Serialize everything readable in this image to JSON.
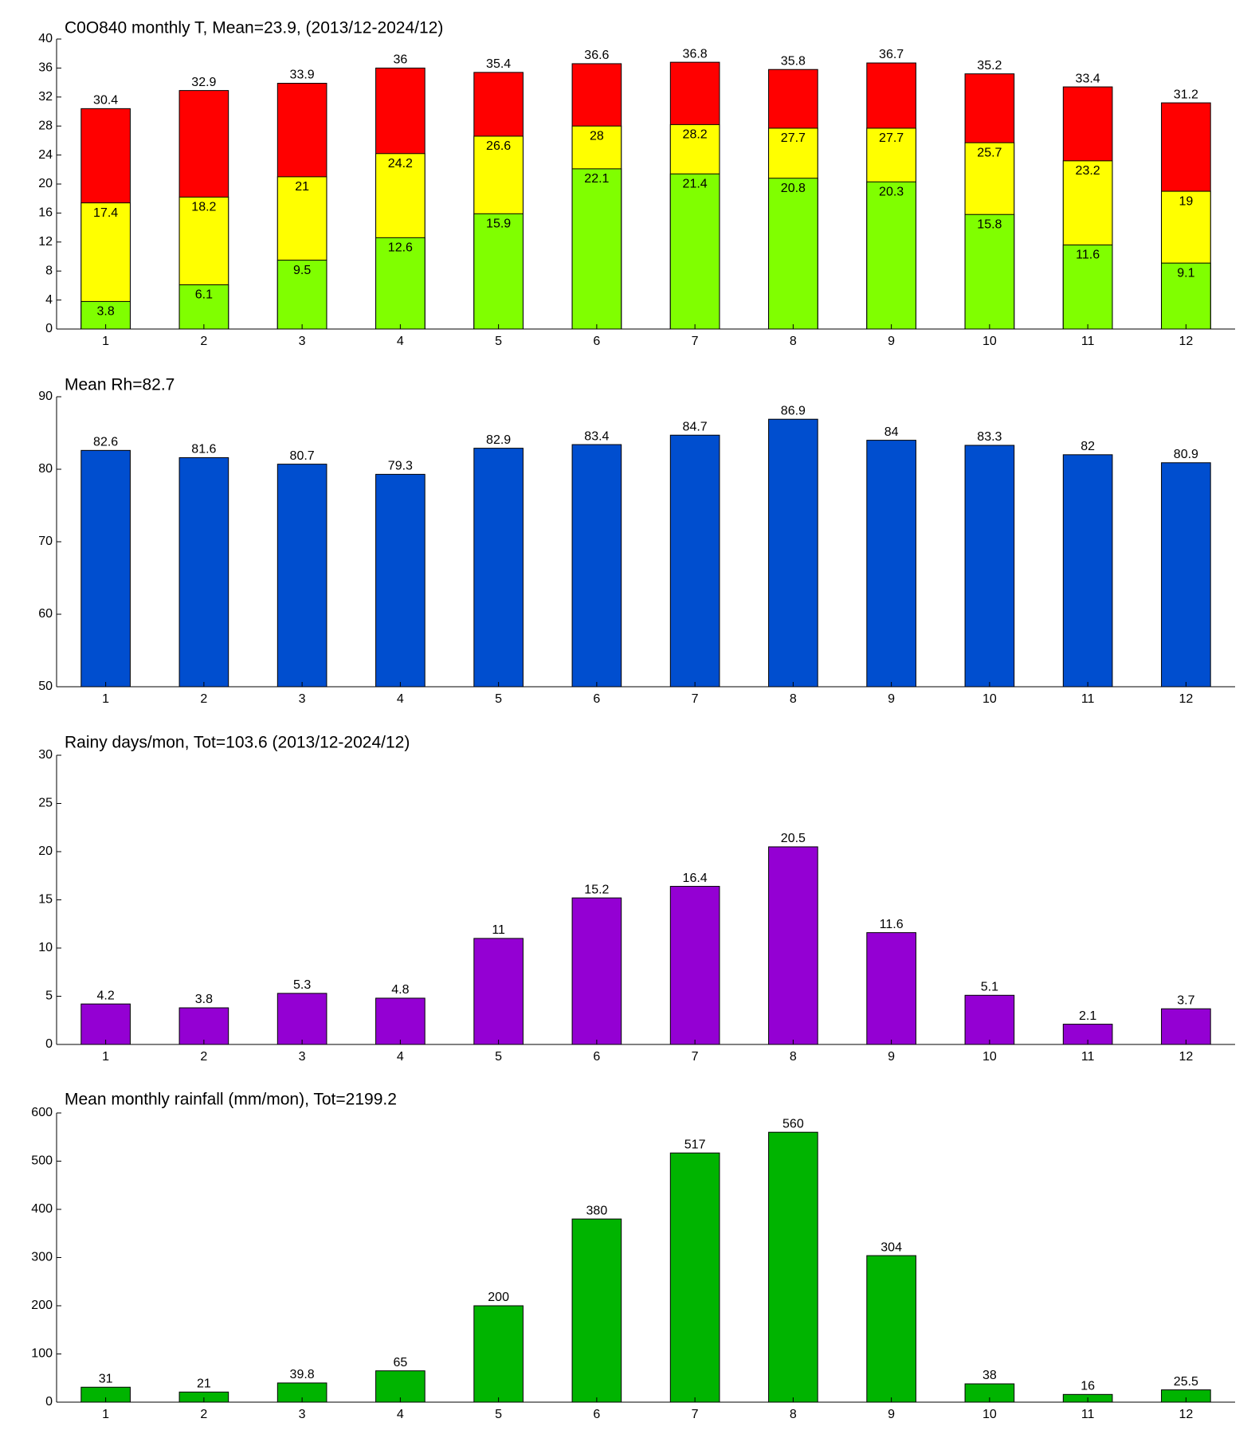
{
  "chart_data": [
    {
      "type": "bar",
      "title": "C0O840 monthly T, Mean=23.9, (2013/12-2024/12)",
      "categories": [
        1,
        2,
        3,
        4,
        5,
        6,
        7,
        8,
        9,
        10,
        11,
        12
      ],
      "series": [
        {
          "color": "#ff0000",
          "values": [
            30.4,
            32.9,
            33.9,
            36,
            35.4,
            36.6,
            36.8,
            35.8,
            36.7,
            35.2,
            33.4,
            31.2
          ]
        },
        {
          "color": "#ffff00",
          "values": [
            17.4,
            18.2,
            21,
            24.2,
            26.6,
            28,
            28.2,
            27.7,
            27.7,
            25.7,
            23.2,
            19
          ]
        },
        {
          "color": "#80ff00",
          "values": [
            3.8,
            6.1,
            9.5,
            12.6,
            15.9,
            22.1,
            21.4,
            20.8,
            20.3,
            15.8,
            11.6,
            9.1
          ]
        }
      ],
      "ylim": [
        0,
        40
      ],
      "yticks": [
        0,
        4,
        8,
        12,
        16,
        20,
        24,
        28,
        32,
        36,
        40
      ]
    },
    {
      "type": "bar",
      "title": "Mean Rh=82.7",
      "categories": [
        1,
        2,
        3,
        4,
        5,
        6,
        7,
        8,
        9,
        10,
        11,
        12
      ],
      "series": [
        {
          "color": "#004ecf",
          "values": [
            82.6,
            81.6,
            80.7,
            79.3,
            82.9,
            83.4,
            84.7,
            86.9,
            84,
            83.3,
            82,
            80.9
          ]
        }
      ],
      "ylim": [
        50,
        90
      ],
      "yticks": [
        50,
        60,
        70,
        80,
        90
      ]
    },
    {
      "type": "bar",
      "title": "Rainy days/mon, Tot=103.6 (2013/12-2024/12)",
      "categories": [
        1,
        2,
        3,
        4,
        5,
        6,
        7,
        8,
        9,
        10,
        11,
        12
      ],
      "series": [
        {
          "color": "#9400d3",
          "values": [
            4.2,
            3.8,
            5.3,
            4.8,
            11,
            15.2,
            16.4,
            20.5,
            11.6,
            5.1,
            2.1,
            3.7
          ]
        }
      ],
      "ylim": [
        0,
        30
      ],
      "yticks": [
        0,
        5,
        10,
        15,
        20,
        25,
        30
      ]
    },
    {
      "type": "bar",
      "title": "Mean monthly rainfall (mm/mon), Tot=2199.2",
      "categories": [
        1,
        2,
        3,
        4,
        5,
        6,
        7,
        8,
        9,
        10,
        11,
        12
      ],
      "series": [
        {
          "color": "#00b400",
          "values": [
            31,
            21,
            39.8,
            65,
            200,
            380,
            517,
            560,
            304,
            38,
            16,
            25.5
          ]
        }
      ],
      "ylim": [
        0,
        600
      ],
      "yticks": [
        0,
        100,
        200,
        300,
        400,
        500,
        600
      ]
    }
  ]
}
